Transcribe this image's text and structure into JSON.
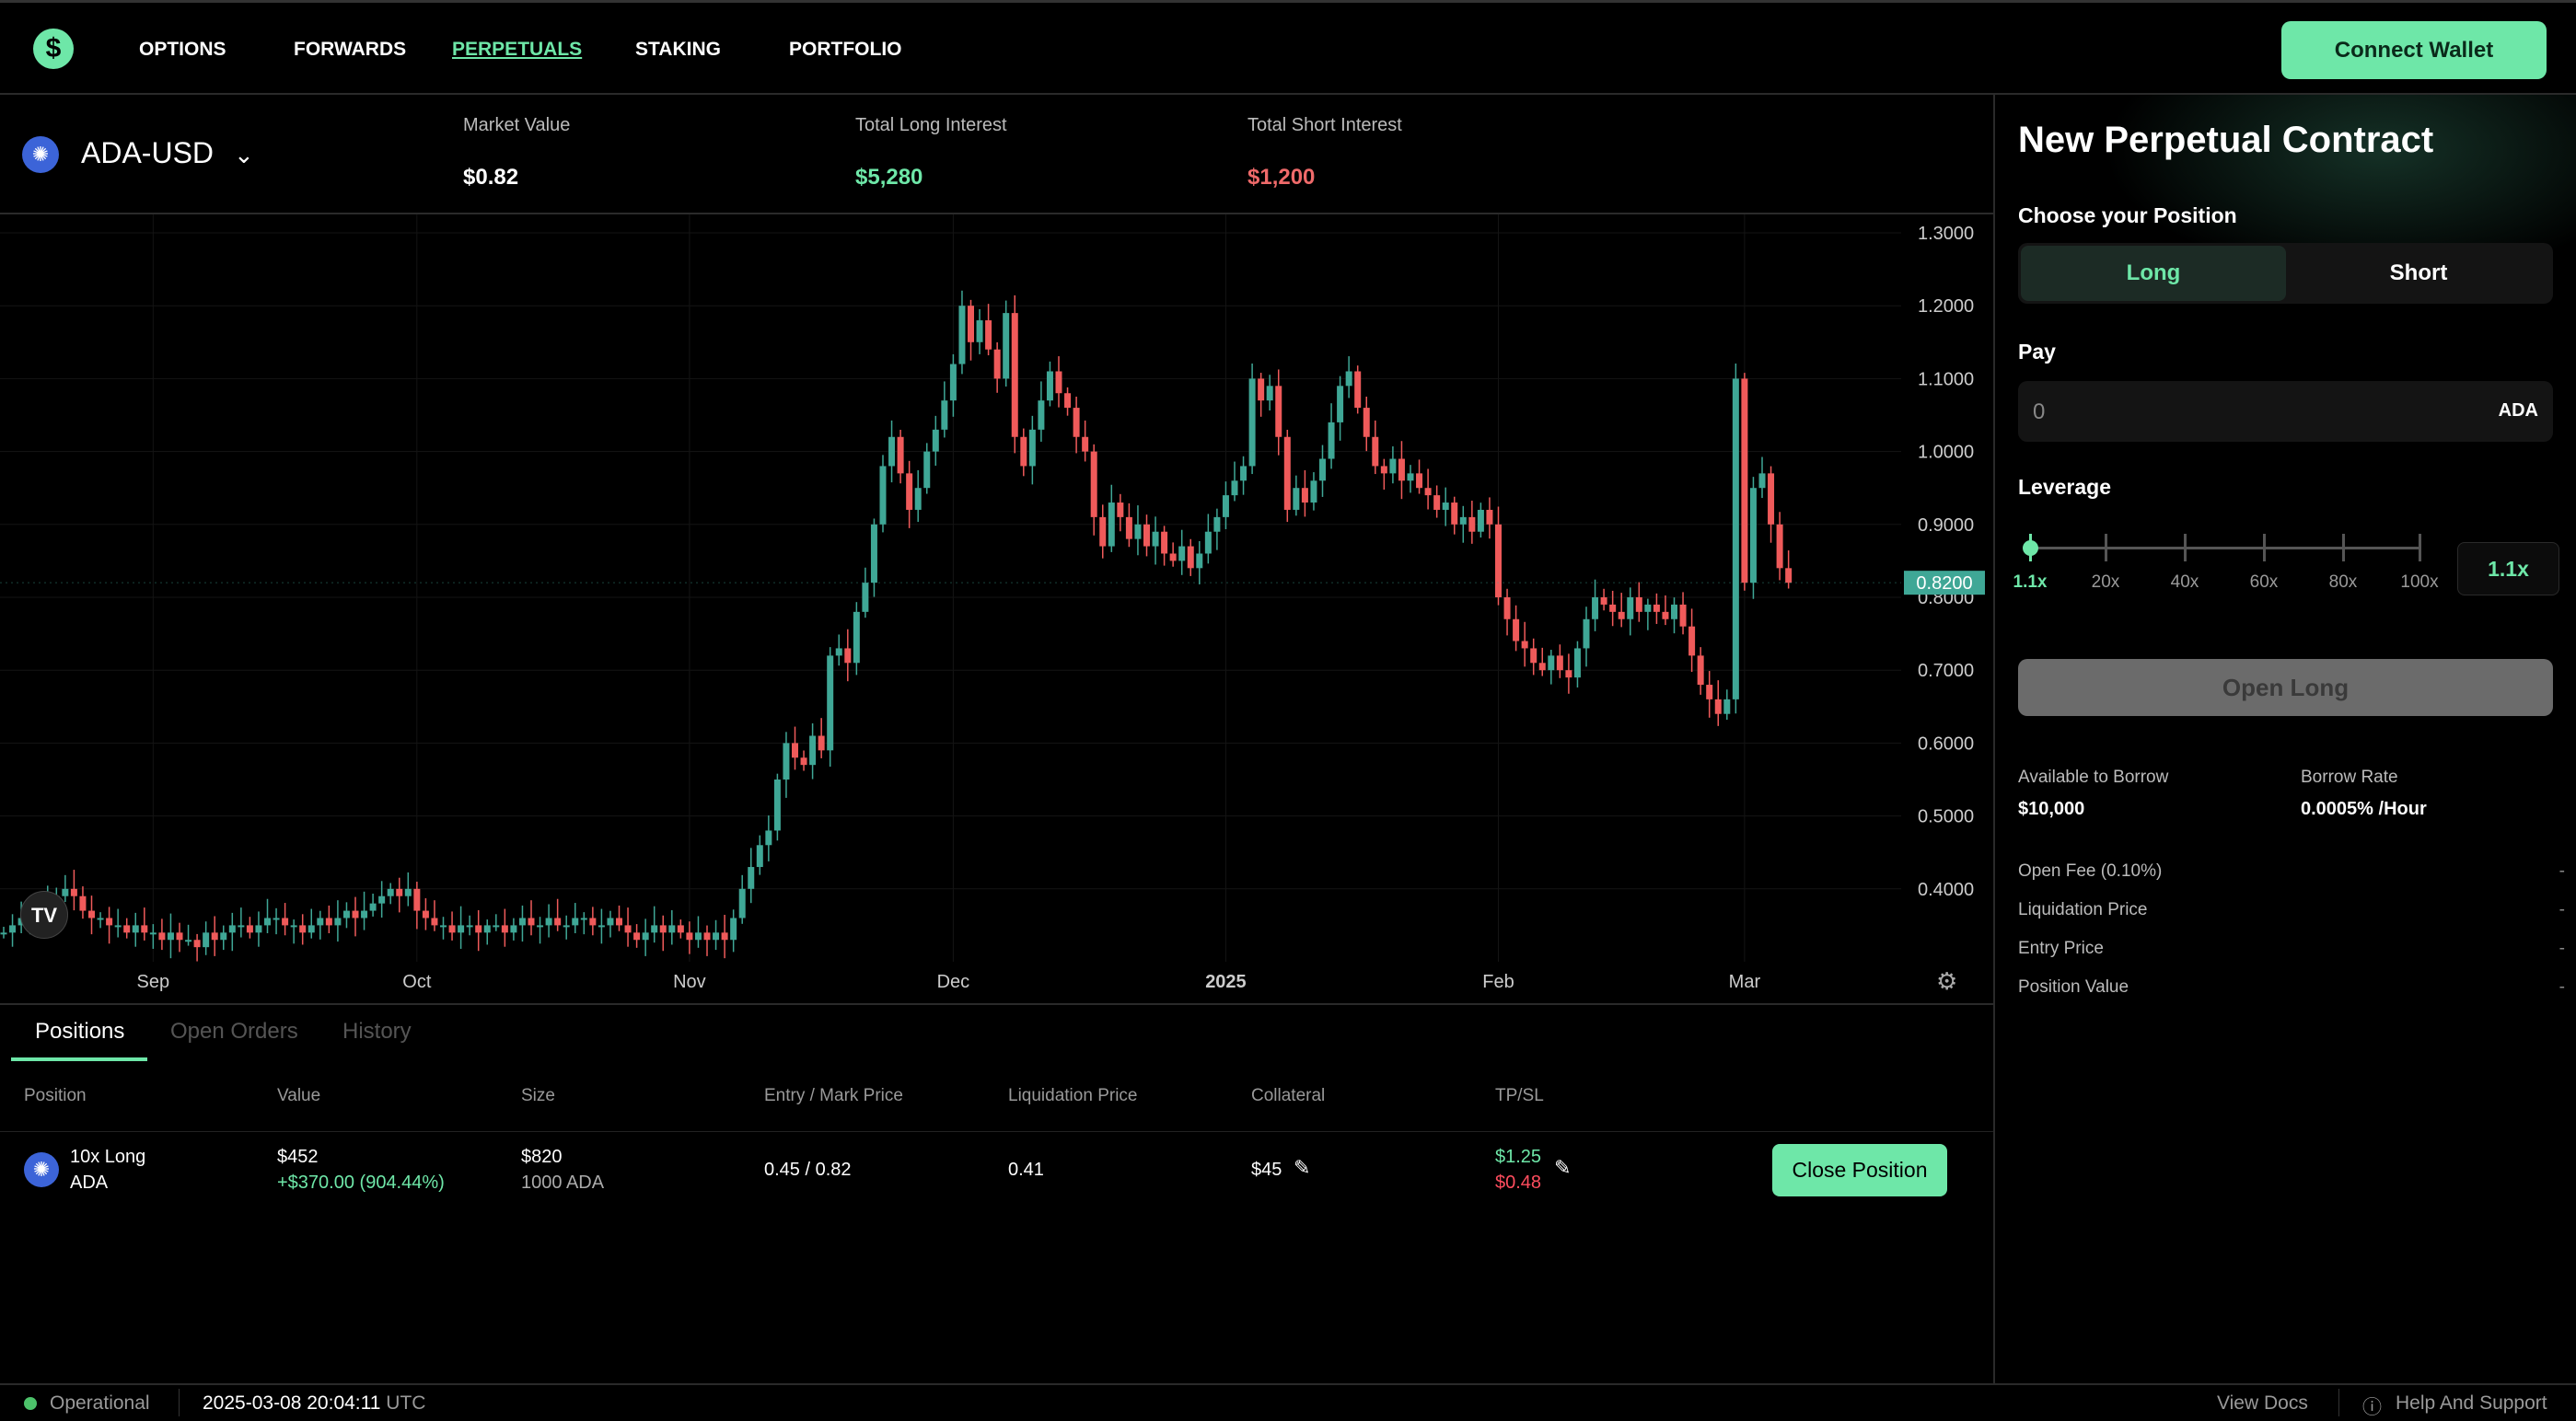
{
  "nav": {
    "logo": "$",
    "items": [
      "OPTIONS",
      "FORWARDS",
      "PERPETUALS",
      "STAKING",
      "PORTFOLIO"
    ],
    "active": "PERPETUALS",
    "connect": "Connect Wallet"
  },
  "ticker": {
    "pair": "ADA-USD",
    "market_label": "Market Value",
    "market_value": "$0.82",
    "long_label": "Total Long Interest",
    "long_value": "$5,280",
    "short_label": "Total Short Interest",
    "short_value": "$1,200"
  },
  "colors": {
    "accent": "#6ee7a8",
    "up": "#3fa796",
    "down": "#ef5a5a"
  },
  "chart_data": {
    "type": "candlestick",
    "y_ticks": [
      "1.3000",
      "1.2000",
      "1.1000",
      "1.0000",
      "0.9000",
      "0.8000",
      "0.7000",
      "0.6000",
      "0.5000",
      "0.4000"
    ],
    "ylim": [
      0.33,
      1.33
    ],
    "last_price": "0.8200",
    "x_labels": [
      {
        "label": "Sep",
        "day": 17
      },
      {
        "label": "Oct",
        "day": 47
      },
      {
        "label": "Nov",
        "day": 78
      },
      {
        "label": "Dec",
        "day": 108
      },
      {
        "label": "2025",
        "day": 139
      },
      {
        "label": "Feb",
        "day": 170
      },
      {
        "label": "Mar",
        "day": 198
      }
    ],
    "closes": [
      0.34,
      0.35,
      0.36,
      0.37,
      0.36,
      0.38,
      0.39,
      0.4,
      0.39,
      0.37,
      0.36,
      0.36,
      0.35,
      0.35,
      0.34,
      0.35,
      0.34,
      0.34,
      0.33,
      0.34,
      0.33,
      0.33,
      0.32,
      0.34,
      0.33,
      0.34,
      0.35,
      0.35,
      0.34,
      0.35,
      0.36,
      0.36,
      0.35,
      0.35,
      0.34,
      0.35,
      0.36,
      0.35,
      0.36,
      0.37,
      0.36,
      0.37,
      0.38,
      0.39,
      0.4,
      0.39,
      0.4,
      0.37,
      0.36,
      0.35,
      0.35,
      0.34,
      0.35,
      0.35,
      0.34,
      0.35,
      0.35,
      0.34,
      0.35,
      0.36,
      0.35,
      0.35,
      0.36,
      0.35,
      0.35,
      0.36,
      0.36,
      0.35,
      0.35,
      0.36,
      0.35,
      0.34,
      0.33,
      0.34,
      0.35,
      0.34,
      0.35,
      0.34,
      0.33,
      0.34,
      0.33,
      0.34,
      0.33,
      0.36,
      0.4,
      0.43,
      0.46,
      0.48,
      0.55,
      0.6,
      0.58,
      0.57,
      0.61,
      0.59,
      0.72,
      0.73,
      0.71,
      0.78,
      0.82,
      0.9,
      0.98,
      1.02,
      0.97,
      0.92,
      0.95,
      1.0,
      1.03,
      1.07,
      1.12,
      1.2,
      1.15,
      1.18,
      1.14,
      1.1,
      1.19,
      1.02,
      0.98,
      1.03,
      1.07,
      1.11,
      1.08,
      1.06,
      1.02,
      1.0,
      0.91,
      0.87,
      0.93,
      0.91,
      0.88,
      0.9,
      0.87,
      0.89,
      0.86,
      0.85,
      0.87,
      0.84,
      0.86,
      0.89,
      0.91,
      0.94,
      0.96,
      0.98,
      1.1,
      1.07,
      1.09,
      1.02,
      0.92,
      0.95,
      0.93,
      0.96,
      0.99,
      1.04,
      1.09,
      1.11,
      1.06,
      1.02,
      0.98,
      0.97,
      0.99,
      0.96,
      0.97,
      0.95,
      0.94,
      0.92,
      0.93,
      0.9,
      0.91,
      0.89,
      0.92,
      0.9,
      0.8,
      0.77,
      0.74,
      0.73,
      0.71,
      0.7,
      0.72,
      0.7,
      0.69,
      0.73,
      0.77,
      0.8,
      0.79,
      0.78,
      0.77,
      0.8,
      0.78,
      0.79,
      0.78,
      0.77,
      0.79,
      0.76,
      0.72,
      0.68,
      0.66,
      0.64,
      0.66,
      1.1,
      0.82,
      0.95,
      0.97,
      0.9,
      0.84,
      0.82
    ]
  },
  "positions": {
    "tabs": [
      "Positions",
      "Open Orders",
      "History"
    ],
    "headers": [
      "Position",
      "Value",
      "Size",
      "Entry / Mark Price",
      "Liquidation Price",
      "Collateral",
      "TP/SL"
    ],
    "row": {
      "position": "10x Long",
      "asset": "ADA",
      "value": "$452",
      "pnl": "+$370.00 (904.44%)",
      "size": "$820",
      "size_units": "1000 ADA",
      "entry_mark": "0.45 / 0.82",
      "liq": "0.41",
      "collateral": "$45",
      "tp": "$1.25",
      "sl": "$0.48"
    },
    "close": "Close Position"
  },
  "footer": {
    "status": "Operational",
    "time": "2025-03-08 20:04:11",
    "tz": "UTC",
    "docs": "View Docs",
    "help": "Help And Support"
  },
  "panel": {
    "title": "New Perpetual Contract",
    "choose": "Choose your Position",
    "long": "Long",
    "short": "Short",
    "pay": "Pay",
    "pay_placeholder": "0",
    "pay_unit": "ADA",
    "leverage": "Leverage",
    "lev_marks": [
      "1.1x",
      "20x",
      "40x",
      "60x",
      "80x",
      "100x"
    ],
    "lev_value": "1.1x",
    "lev_fraction": 0,
    "open": "Open Long",
    "borrow_label": "Available to Borrow",
    "borrow_value": "$10,000",
    "rate_label": "Borrow Rate",
    "rate_value": "0.0005% /Hour",
    "details": [
      {
        "label": "Open Fee (0.10%)",
        "value": "-"
      },
      {
        "label": "Liquidation Price",
        "value": "-"
      },
      {
        "label": "Entry Price",
        "value": "-"
      },
      {
        "label": "Position Value",
        "value": "-"
      }
    ]
  }
}
